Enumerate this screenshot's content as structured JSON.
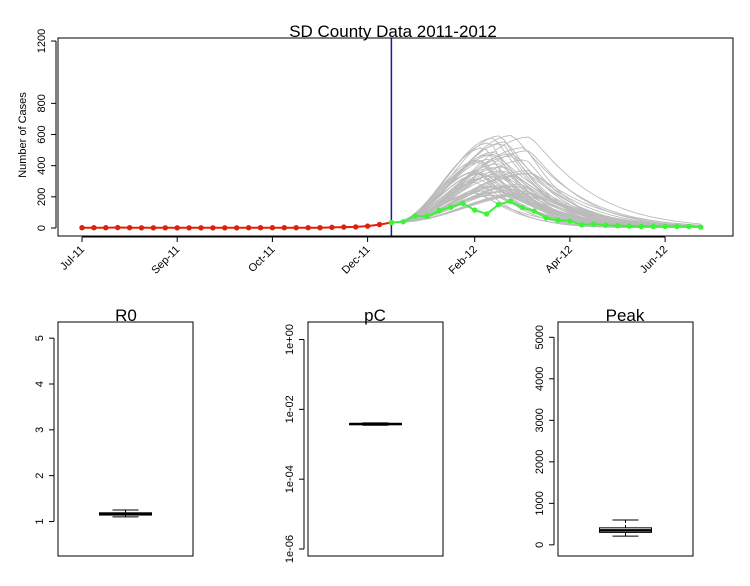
{
  "chart_data": [
    {
      "type": "line",
      "title": "SD County Data 2011-2012",
      "ylabel": "Number of Cases",
      "xlabel": "",
      "ylim": [
        0,
        1200
      ],
      "yticks": [
        0,
        200,
        400,
        600,
        800,
        1200
      ],
      "xticks": [
        "Jul-11",
        "Sep-11",
        "Oct-11",
        "Dec-11",
        "Feb-12",
        "Apr-12",
        "Jun-12"
      ],
      "xtick_weeks": [
        0,
        8,
        16,
        24,
        33,
        41,
        49
      ],
      "cutoff_week": 26,
      "cutoff_color": "#1a1aa6",
      "observed": {
        "color": "#e0200f",
        "values": [
          2,
          2,
          2,
          3,
          2,
          1,
          1,
          1,
          1,
          1,
          1,
          1,
          1,
          1,
          2,
          2,
          2,
          2,
          2,
          2,
          2,
          4,
          6,
          7,
          12,
          22,
          35
        ]
      },
      "future": {
        "color": "#3ef23a",
        "start_week": 26,
        "values": [
          35,
          40,
          78,
          74,
          112,
          134,
          158,
          115,
          90,
          150,
          172,
          132,
          109,
          65,
          50,
          45,
          20,
          25,
          18,
          15,
          12,
          10,
          10,
          10,
          10,
          10,
          5
        ]
      },
      "simulations": {
        "color": "#bbbbbb",
        "count": 60,
        "peak_week_range": [
          33,
          38
        ],
        "peak_value_range": [
          210,
          600
        ]
      }
    },
    {
      "type": "box",
      "title": "R0",
      "ylim": [
        0.4,
        5.2
      ],
      "yticks": [
        1,
        2,
        3,
        4,
        5
      ],
      "scale": "linear",
      "box": {
        "whisker_low": 1.1,
        "q1": 1.14,
        "median": 1.17,
        "q3": 1.19,
        "whisker_high": 1.25
      }
    },
    {
      "type": "box",
      "title": "pC",
      "scale": "log",
      "ylim": [
        1e-06,
        2.0
      ],
      "yticks": [
        "1e-06",
        "1e-04",
        "1e-02",
        "1e+00"
      ],
      "ytick_values": [
        1e-06,
        0.0001,
        0.01,
        1.0
      ],
      "box": {
        "whisker_low": 0.0035,
        "q1": 0.0037,
        "median": 0.0038,
        "q3": 0.0039,
        "whisker_high": 0.0041
      }
    },
    {
      "type": "box",
      "title": "Peak",
      "ylim": [
        -100,
        5200
      ],
      "yticks": [
        0,
        1000,
        2000,
        3000,
        4000,
        5000
      ],
      "scale": "linear",
      "box": {
        "whisker_low": 210,
        "q1": 300,
        "median": 350,
        "q3": 410,
        "whisker_high": 600
      }
    }
  ]
}
